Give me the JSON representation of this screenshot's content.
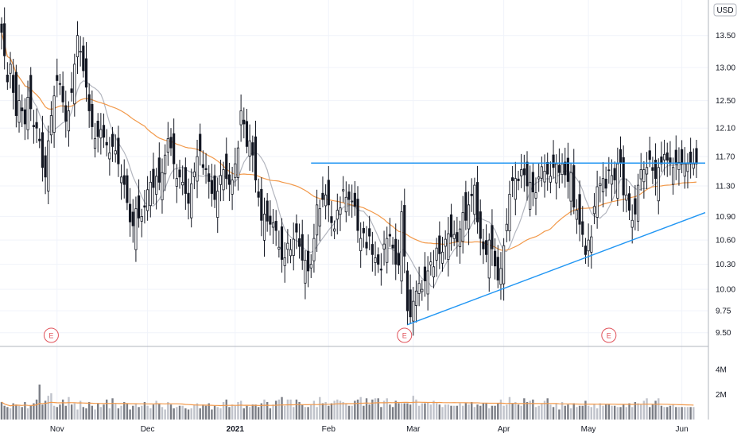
{
  "currency_label": "USD",
  "chart_data": {
    "type": "candlestick",
    "y_axis": {
      "ticks": [
        9.5,
        9.75,
        10.0,
        10.3,
        10.6,
        10.9,
        11.3,
        11.7,
        12.1,
        12.5,
        13.0,
        13.5
      ],
      "ylim": [
        9.4,
        14.0
      ],
      "scale": "log"
    },
    "volume_axis": {
      "ticks": [
        "2M",
        "4M"
      ],
      "tick_values": [
        2,
        4
      ],
      "ylim": [
        0,
        5.6
      ]
    },
    "x_axis": {
      "labels": [
        {
          "text": "Nov",
          "bar": 19,
          "bold": false
        },
        {
          "text": "Dec",
          "bar": 50,
          "bold": false
        },
        {
          "text": "2021",
          "bar": 80,
          "bold": true
        },
        {
          "text": "Feb",
          "bar": 112,
          "bold": false
        },
        {
          "text": "Mar",
          "bar": 141,
          "bold": false
        },
        {
          "text": "Apr",
          "bar": 172,
          "bold": false
        },
        {
          "text": "May",
          "bar": 201,
          "bold": false
        },
        {
          "text": "Jun",
          "bar": 233,
          "bold": false
        }
      ],
      "bar_range": [
        0,
        241
      ]
    },
    "earnings_markers": [
      {
        "label": "E",
        "bar": 17
      },
      {
        "label": "E",
        "bar": 138
      },
      {
        "label": "E",
        "bar": 208
      }
    ],
    "trendlines": [
      {
        "name": "resistance",
        "from": [
          106,
          11.61
        ],
        "to": [
          241,
          11.61
        ],
        "color": "#2196f3"
      },
      {
        "name": "support",
        "from": [
          139,
          9.59
        ],
        "to": [
          241,
          10.95
        ],
        "color": "#2196f3"
      }
    ],
    "closes": [
      13.55,
      13.18,
      12.78,
      13.05,
      12.62,
      12.28,
      12.5,
      12.35,
      12.16,
      12.55,
      12.38,
      12.12,
      12.1,
      11.92,
      11.55,
      11.42,
      11.92,
      12.28,
      12.57,
      12.8,
      12.75,
      12.48,
      12.2,
      12.35,
      12.62,
      13.05,
      13.5,
      13.25,
      12.95,
      12.7,
      12.35,
      12.12,
      11.95,
      11.98,
      12.08,
      11.97,
      11.86,
      11.75,
      11.84,
      11.78,
      11.6,
      11.42,
      11.32,
      11.08,
      10.83,
      10.78,
      11.0,
      10.88,
      10.9,
      11.02,
      11.25,
      11.35,
      11.28,
      11.43,
      11.35,
      11.48,
      11.72,
      11.95,
      11.82,
      11.6,
      11.4,
      11.42,
      11.35,
      11.2,
      11.07,
      11.33,
      11.49,
      11.7,
      11.78,
      11.55,
      11.52,
      11.36,
      11.2,
      11.12,
      11.23,
      11.44,
      11.52,
      11.4,
      11.32,
      11.38,
      11.6,
      11.82,
      12.35,
      12.16,
      11.84,
      11.92,
      11.72,
      11.38,
      11.15,
      10.85,
      10.93,
      10.84,
      10.8,
      10.82,
      10.72,
      10.51,
      10.36,
      10.38,
      10.56,
      10.48,
      10.61,
      10.7,
      10.52,
      10.35,
      10.35,
      10.22,
      10.3,
      10.62,
      11.05,
      11.0,
      11.12,
      11.18,
      11.05,
      10.82,
      10.74,
      10.98,
      11.01,
      11.25,
      11.15,
      11.12,
      11.1,
      11.03,
      10.72,
      10.62,
      10.69,
      10.5,
      10.65,
      10.42,
      10.38,
      10.3,
      10.23,
      10.55,
      10.62,
      10.65,
      10.5,
      10.3,
      10.29,
      10.96,
      10.4,
      9.75,
      9.68,
      9.86,
      9.98,
      10.07,
      10.0,
      10.1,
      10.22,
      10.33,
      10.27,
      10.5,
      10.43,
      10.45,
      10.61,
      10.68,
      10.64,
      10.67,
      10.58,
      10.74,
      10.95,
      10.85,
      11.05,
      11.17,
      11.31,
      10.83,
      10.62,
      10.49,
      10.42,
      10.6,
      10.49,
      10.28,
      10.11,
      10.25,
      10.53,
      10.8,
      11.19,
      11.37,
      11.4,
      11.37,
      11.52,
      11.45,
      11.3,
      11.35,
      11.22,
      11.21,
      11.42,
      11.56,
      11.5,
      11.46,
      11.43,
      11.55,
      11.6,
      11.48,
      11.6,
      11.45,
      11.36,
      11.48,
      11.02,
      10.98,
      10.8,
      10.67,
      10.42,
      10.6,
      10.64,
      11.03,
      11.29,
      11.33,
      11.4,
      11.27,
      11.51,
      11.44,
      11.38,
      11.6,
      11.62,
      11.18,
      11.18,
      10.98,
      10.85,
      10.93,
      11.31,
      11.52,
      11.52,
      11.55,
      11.66,
      11.51,
      11.4,
      11.55,
      11.6,
      11.73,
      11.65,
      11.6,
      11.55,
      11.6,
      11.62,
      11.6,
      11.6,
      11.6,
      11.6,
      11.6,
      11.6
    ],
    "volumes_millions": [
      1.4,
      1.1,
      1.0,
      0.9,
      1.3,
      1.2,
      1.1,
      1.0,
      1.4,
      0.9,
      1.1,
      1.3,
      1.6,
      2.8,
      1.2,
      1.5,
      1.9,
      2.1,
      1.1,
      1.0,
      1.2,
      1.6,
      1.1,
      1.8,
      1.2,
      1.3,
      0.8,
      1.5,
      1.0,
      0.9,
      1.4,
      1.1,
      0.8,
      1.3,
      1.0,
      1.2,
      1.6,
      0.9,
      1.7,
      1.3,
      0.9,
      1.1,
      1.4,
      1.3,
      0.8,
      1.1,
      1.3,
      1.0,
      1.1,
      1.4,
      1.1,
      0.9,
      1.2,
      1.5,
      1.3,
      1.0,
      0.8,
      1.4,
      1.2,
      0.9,
      1.0,
      1.1,
      1.1,
      0.9,
      0.8,
      0.9,
      1.2,
      1.3,
      0.9,
      1.2,
      1.1,
      1.3,
      0.8,
      1.1,
      1.0,
      0.9,
      1.4,
      1.6,
      1.0,
      1.2,
      1.1,
      1.4,
      1.5,
      0.9,
      1.1,
      1.0,
      1.2,
      1.2,
      1.0,
      1.3,
      1.6,
      1.4,
      0.9,
      1.2,
      1.5,
      1.6,
      1.8,
      1.1,
      1.6,
      1.6,
      1.0,
      1.6,
      1.4,
      1.2,
      1.0,
      1.0,
      1.2,
      1.5,
      1.0,
      1.8,
      1.3,
      1.4,
      1.1,
      1.3,
      1.5,
      1.6,
      1.5,
      1.4,
      1.3,
      1.1,
      1.1,
      1.5,
      1.6,
      1.8,
      1.1,
      1.7,
      1.2,
      1.6,
      1.7,
      1.7,
      1.0,
      1.5,
      1.7,
      1.2,
      1.0,
      1.5,
      1.3,
      1.3,
      1.3,
      1.3,
      1.2,
      1.9,
      1.6,
      1.1,
      1.3,
      1.3,
      1.4,
      1.2,
      1.5,
      1.3,
      1.2,
      1.0,
      1.2,
      1.2,
      1.1,
      1.1,
      1.1,
      1.3,
      1.1,
      1.3,
      1.2,
      1.4,
      1.0,
      1.2,
      1.1,
      1.3,
      1.3,
      0.9,
      1.1,
      1.1,
      1.3,
      1.6,
      1.1,
      1.2,
      1.8,
      1.3,
      1.4,
      1.2,
      1.1,
      1.7,
      1.4,
      1.5,
      1.6,
      1.0,
      1.1,
      1.3,
      1.5,
      1.7,
      1.2,
      1.0,
      1.3,
      0.8,
      1.4,
      1.1,
      1.2,
      0.9,
      1.3,
      1.0,
      1.1,
      1.1,
      1.5,
      1.1,
      1.0,
      1.2,
      0.9,
      1.3,
      1.1,
      1.2,
      1.2,
      1.1,
      1.1,
      1.0,
      1.0,
      1.2,
      1.0,
      1.3,
      1.0,
      1.4,
      1.3,
      1.2,
      1.5,
      1.7,
      1.0,
      1.2,
      1.5,
      1.7,
      1.1,
      1.0,
      1.0,
      1.1,
      1.2,
      1.0,
      1.0,
      1.0,
      1.0,
      1.0,
      1.0,
      1.0
    ],
    "ma_fast_color": "#b2b5be",
    "ma_slow_color": "#f2994a",
    "up_color": "#ffffff",
    "down_color": "#131722",
    "volume_up_color": "#c0c3cb",
    "volume_down_color": "#7a7d85"
  }
}
